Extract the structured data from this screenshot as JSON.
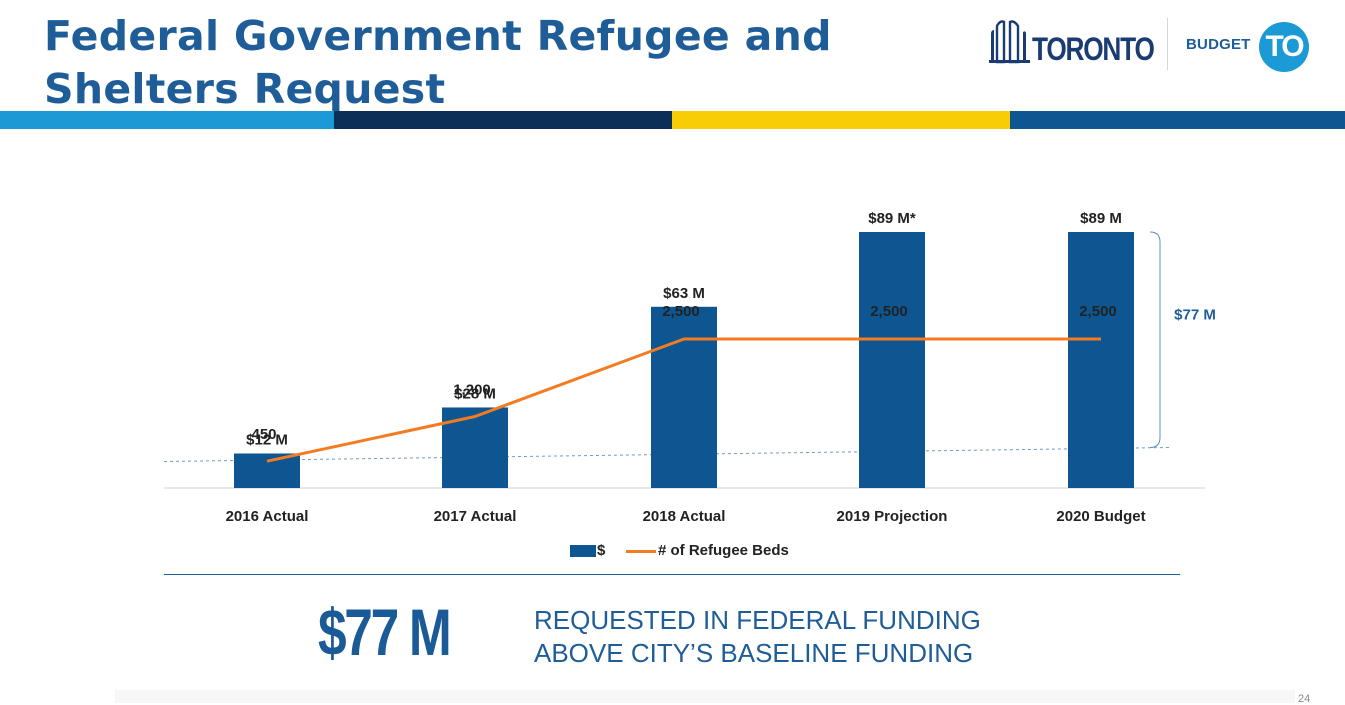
{
  "header": {
    "title_line1": "Federal Government Refugee and",
    "title_line2": "Shelters Request",
    "logo_toronto": "TORONTO",
    "logo_budget_word": "BUDGET",
    "logo_budget_mark": "TO"
  },
  "colors": {
    "stripe": [
      "#1c9ad6",
      "#0c2f57",
      "#f9cd06",
      "#0d5691"
    ],
    "bar": "#0d5691",
    "line": "#f47b20",
    "accent": "#1f5d99"
  },
  "chart_data": {
    "type": "bar+line",
    "categories": [
      "2016 Actual",
      "2017 Actual",
      "2018 Actual",
      "2019 Projection",
      "2020 Budget"
    ],
    "series": [
      {
        "name": "$",
        "type": "bar",
        "values": [
          12,
          28,
          63,
          89,
          89
        ],
        "unit": "$ M",
        "labels": [
          "$12 M",
          "$28 M",
          "$63 M",
          "$89 M*",
          "$89 M"
        ]
      },
      {
        "name": "# of Refugee Beds",
        "type": "line",
        "values": [
          450,
          1200,
          2500,
          2500,
          2500
        ],
        "labels": [
          "450",
          "1,200",
          "2,500",
          "2,500",
          "2,500"
        ]
      }
    ],
    "bar_ylim": [
      0,
      100
    ],
    "line_ylim": [
      0,
      2800
    ],
    "baseline_value": 12,
    "bracket_label": "$77 M",
    "legend_position": "bottom"
  },
  "legend": {
    "bar": "$",
    "line": "# of Refugee Beds"
  },
  "summary": {
    "amount": "$77 M",
    "line1": "REQUESTED IN FEDERAL FUNDING",
    "line2": "ABOVE CITY’S BASELINE FUNDING"
  },
  "page_number": "24"
}
